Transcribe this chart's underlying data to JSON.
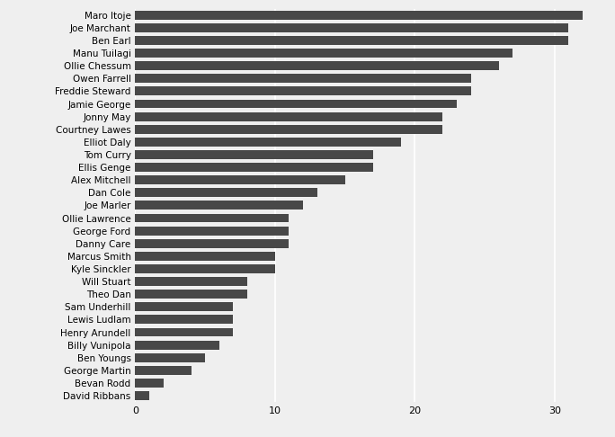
{
  "players": [
    "Maro Itoje",
    "Joe Marchant",
    "Ben Earl",
    "Manu Tuilagi",
    "Ollie Chessum",
    "Owen Farrell",
    "Freddie Steward",
    "Jamie George",
    "Jonny May",
    "Courtney Lawes",
    "Elliot Daly",
    "Tom Curry",
    "Ellis Genge",
    "Alex Mitchell",
    "Dan Cole",
    "Joe Marler",
    "Ollie Lawrence",
    "George Ford",
    "Danny Care",
    "Marcus Smith",
    "Kyle Sinckler",
    "Will Stuart",
    "Theo Dan",
    "Sam Underhill",
    "Lewis Ludlam",
    "Henry Arundell",
    "Billy Vunipola",
    "Ben Youngs",
    "George Martin",
    "Bevan Rodd",
    "David Ribbans"
  ],
  "values": [
    32,
    31,
    31,
    27,
    26,
    24,
    24,
    23,
    22,
    22,
    19,
    17,
    17,
    15,
    13,
    12,
    11,
    11,
    11,
    10,
    10,
    8,
    8,
    7,
    7,
    7,
    6,
    5,
    4,
    2,
    1
  ],
  "bar_color": "#484848",
  "bg_color": "#efefef",
  "grid_color": "#ffffff",
  "xlim": [
    0,
    33
  ],
  "xticks": [
    0,
    10,
    20,
    30
  ],
  "figsize": [
    6.84,
    4.86
  ],
  "dpi": 100,
  "tick_fontsize": 8,
  "label_fontsize": 7.5
}
